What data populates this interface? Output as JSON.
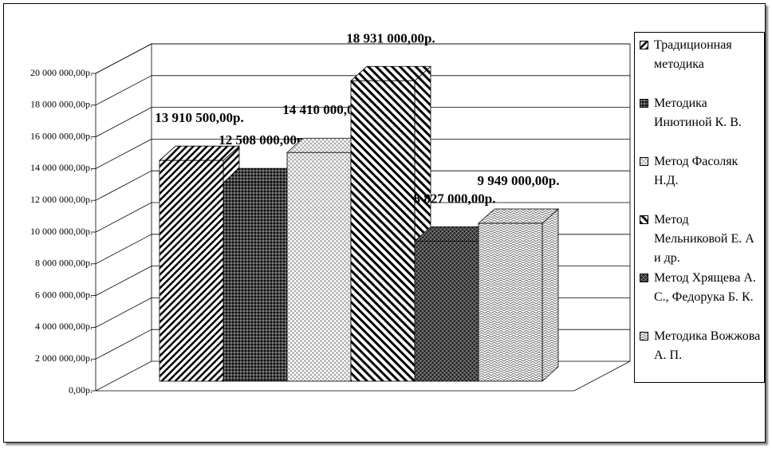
{
  "chart_data": {
    "type": "bar3d",
    "series": [
      {
        "name": "Традиционная методика",
        "values": [
          13910500
        ],
        "value_labels": [
          "13 910 500,00р."
        ]
      },
      {
        "name": "Методика Инютиной К. В.",
        "values": [
          12508000
        ],
        "value_labels": [
          "12 508 000,00р."
        ]
      },
      {
        "name": "Метод Фасоляк Н.Д.",
        "values": [
          14410000
        ],
        "value_labels": [
          "14 410 000,00р."
        ]
      },
      {
        "name": "Метод Мельниковой Е. А и др.",
        "values": [
          18931000
        ],
        "value_labels": [
          "18 931 000,00р."
        ]
      },
      {
        "name": "Метод Хрящева А. С., Федорука Б. К.",
        "values": [
          8827000
        ],
        "value_labels": [
          "8 827 000,00р."
        ]
      },
      {
        "name": "Методика Вожжова А. П.",
        "values": [
          9949000
        ],
        "value_labels": [
          "9 949 000,00р."
        ]
      }
    ],
    "ylim": [
      0,
      20000000
    ],
    "yticks": [
      {
        "value": 0,
        "label": "0,00р."
      },
      {
        "value": 2000000,
        "label": "2 000 000,00р."
      },
      {
        "value": 4000000,
        "label": "4 000 000,00р."
      },
      {
        "value": 6000000,
        "label": "6 000 000,00р."
      },
      {
        "value": 8000000,
        "label": "8 000 000,00р."
      },
      {
        "value": 10000000,
        "label": "10 000 000,00р."
      },
      {
        "value": 12000000,
        "label": "12 000 000,00р."
      },
      {
        "value": 14000000,
        "label": "14 000 000,00р."
      },
      {
        "value": 16000000,
        "label": "16 000 000,00р."
      },
      {
        "value": 18000000,
        "label": "18 000 000,00р."
      },
      {
        "value": 20000000,
        "label": "20 000 000,00р."
      }
    ],
    "grid": true
  }
}
